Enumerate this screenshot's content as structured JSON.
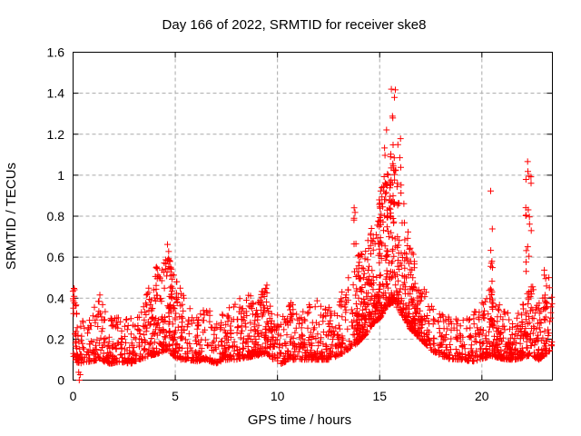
{
  "page": {
    "background": "#ffffff"
  },
  "chart_data": {
    "type": "scatter",
    "title": "Day 166 of 2022, SRMTID for receiver ske8",
    "xlabel": "GPS time / hours",
    "ylabel": "SRMTID / TECUs",
    "xlim": [
      0,
      23.45
    ],
    "ylim": [
      0,
      1.6
    ],
    "xticks": [
      0,
      5,
      10,
      15,
      20
    ],
    "xtick_labels": [
      "0",
      "5",
      "10",
      "15",
      "20"
    ],
    "yticks": [
      0,
      0.2,
      0.4,
      0.6,
      0.8,
      1,
      1.2,
      1.4,
      1.6
    ],
    "ytick_labels": [
      "0",
      "0.2",
      "0.4",
      "0.6",
      "0.8",
      "1",
      "1.2",
      "1.4",
      "1.6"
    ],
    "grid": true,
    "grid_style": "dashed",
    "grid_color": "#a9a9a9",
    "border_color": "#000000",
    "marker": "plus",
    "marker_color": "#ff0000",
    "marker_size_px": 7,
    "seed": 166,
    "n_points": 1950,
    "y_tail_exponent": 2.1,
    "max_point": [
      15.57,
      1.42
    ],
    "envelope": [
      [
        0.0,
        0.1,
        0.5
      ],
      [
        0.3,
        0.08,
        0.32
      ],
      [
        0.8,
        0.09,
        0.3
      ],
      [
        1.3,
        0.1,
        0.42
      ],
      [
        1.8,
        0.08,
        0.3
      ],
      [
        2.3,
        0.09,
        0.32
      ],
      [
        2.8,
        0.08,
        0.3
      ],
      [
        3.3,
        0.1,
        0.33
      ],
      [
        3.8,
        0.12,
        0.48
      ],
      [
        4.2,
        0.13,
        0.52
      ],
      [
        4.6,
        0.15,
        0.62
      ],
      [
        4.9,
        0.12,
        0.55
      ],
      [
        5.2,
        0.1,
        0.45
      ],
      [
        5.6,
        0.1,
        0.38
      ],
      [
        6.0,
        0.09,
        0.32
      ],
      [
        6.5,
        0.1,
        0.36
      ],
      [
        7.0,
        0.08,
        0.3
      ],
      [
        7.5,
        0.1,
        0.36
      ],
      [
        8.0,
        0.1,
        0.4
      ],
      [
        8.5,
        0.11,
        0.42
      ],
      [
        9.0,
        0.12,
        0.4
      ],
      [
        9.4,
        0.13,
        0.46
      ],
      [
        9.8,
        0.1,
        0.34
      ],
      [
        10.2,
        0.08,
        0.3
      ],
      [
        10.6,
        0.1,
        0.4
      ],
      [
        11.0,
        0.1,
        0.32
      ],
      [
        11.5,
        0.1,
        0.38
      ],
      [
        12.0,
        0.1,
        0.4
      ],
      [
        12.5,
        0.1,
        0.36
      ],
      [
        13.0,
        0.12,
        0.4
      ],
      [
        13.5,
        0.15,
        0.52
      ],
      [
        13.9,
        0.18,
        0.62
      ],
      [
        14.3,
        0.22,
        0.65
      ],
      [
        14.7,
        0.28,
        0.8
      ],
      [
        15.0,
        0.3,
        0.92
      ],
      [
        15.3,
        0.35,
        1.05
      ],
      [
        15.6,
        0.38,
        1.2
      ],
      [
        15.9,
        0.35,
        1.05
      ],
      [
        16.2,
        0.3,
        0.85
      ],
      [
        16.5,
        0.25,
        0.68
      ],
      [
        16.8,
        0.22,
        0.55
      ],
      [
        17.2,
        0.18,
        0.45
      ],
      [
        17.6,
        0.14,
        0.36
      ],
      [
        18.0,
        0.12,
        0.33
      ],
      [
        18.5,
        0.1,
        0.33
      ],
      [
        19.0,
        0.1,
        0.3
      ],
      [
        19.5,
        0.09,
        0.32
      ],
      [
        20.0,
        0.1,
        0.38
      ],
      [
        20.4,
        0.12,
        0.45
      ],
      [
        20.8,
        0.11,
        0.38
      ],
      [
        21.2,
        0.1,
        0.34
      ],
      [
        21.6,
        0.1,
        0.3
      ],
      [
        22.0,
        0.11,
        0.38
      ],
      [
        22.4,
        0.12,
        0.48
      ],
      [
        22.8,
        0.1,
        0.4
      ],
      [
        23.1,
        0.12,
        0.45
      ],
      [
        23.45,
        0.15,
        0.55
      ]
    ],
    "extra_regions": [
      [
        13.8,
        17.2,
        320
      ],
      [
        20.2,
        23.3,
        160
      ],
      [
        3.7,
        5.1,
        80
      ],
      [
        8.0,
        9.8,
        60
      ]
    ],
    "spikes": [
      [
        0.05,
        0.06,
        8,
        0.3,
        0.52
      ],
      [
        0.3,
        0.08,
        3,
        0.0,
        0.04
      ],
      [
        1.3,
        0.08,
        5,
        0.3,
        0.42
      ],
      [
        4.05,
        0.1,
        8,
        0.35,
        0.56
      ],
      [
        4.72,
        0.12,
        12,
        0.4,
        0.68
      ],
      [
        5.3,
        0.06,
        4,
        0.3,
        0.45
      ],
      [
        9.45,
        0.1,
        7,
        0.33,
        0.47
      ],
      [
        10.6,
        0.06,
        4,
        0.3,
        0.42
      ],
      [
        13.8,
        0.06,
        6,
        0.55,
        0.88
      ],
      [
        15.3,
        0.12,
        9,
        0.85,
        1.25
      ],
      [
        15.62,
        0.15,
        16,
        0.85,
        1.42
      ],
      [
        15.95,
        0.1,
        8,
        0.85,
        1.18
      ],
      [
        20.45,
        0.07,
        13,
        0.35,
        0.93
      ],
      [
        22.28,
        0.14,
        18,
        0.5,
        1.07
      ],
      [
        23.1,
        0.08,
        6,
        0.35,
        0.55
      ]
    ]
  }
}
